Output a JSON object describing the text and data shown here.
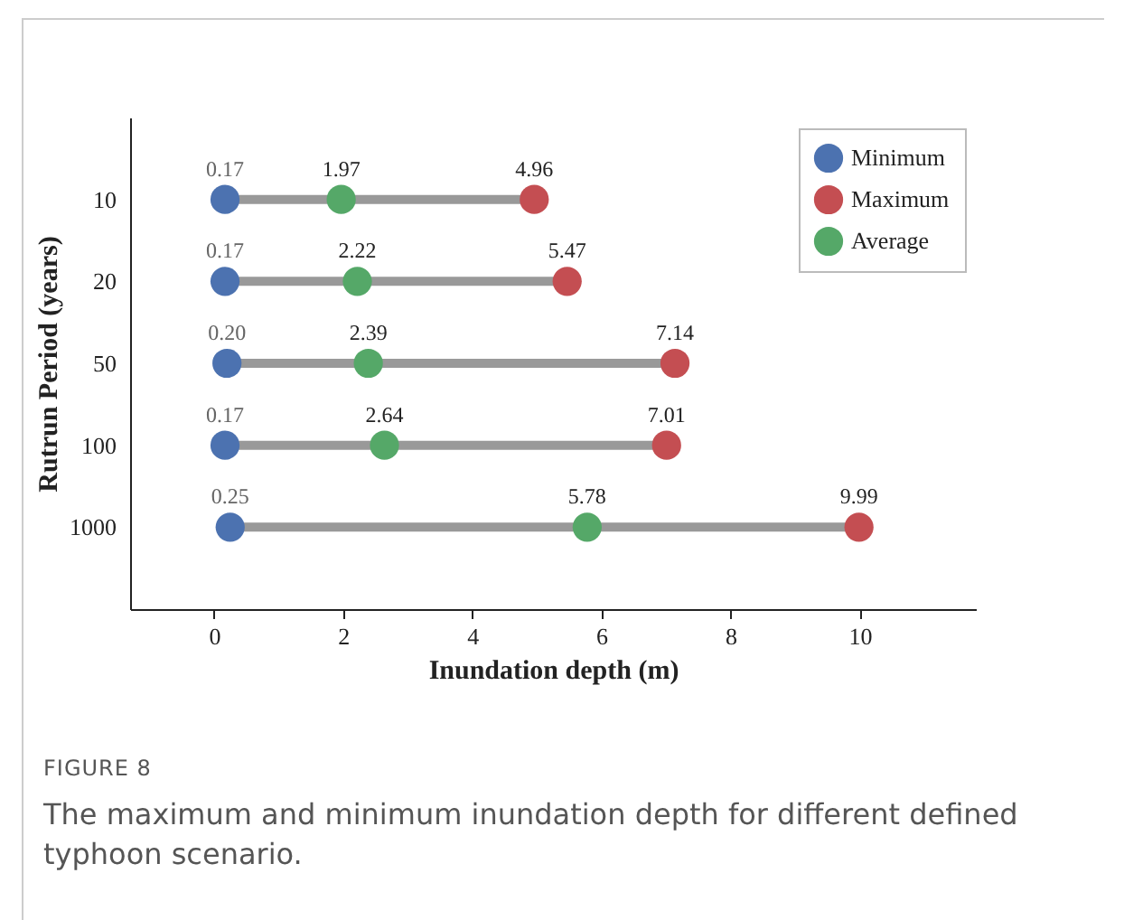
{
  "chart_data": {
    "type": "scatter",
    "orientation": "horizontal",
    "xlabel": "Inundation depth (m)",
    "ylabel": "Rutrun Period (years)",
    "categories": [
      "10",
      "20",
      "50",
      "100",
      "1000"
    ],
    "series": [
      {
        "name": "Minimum",
        "color": "#4c72b0",
        "values": [
          0.17,
          0.17,
          0.2,
          0.17,
          0.25
        ],
        "value_labels": [
          "0.17",
          "0.17",
          "0.20",
          "0.17",
          "0.25"
        ]
      },
      {
        "name": "Maximum",
        "color": "#c44e52",
        "values": [
          4.96,
          5.47,
          7.14,
          7.01,
          9.99
        ],
        "value_labels": [
          "4.96",
          "5.47",
          "7.14",
          "7.01",
          "9.99"
        ]
      },
      {
        "name": "Average",
        "color": "#55a868",
        "values": [
          1.97,
          2.22,
          2.39,
          2.64,
          5.78
        ],
        "value_labels": [
          "1.97",
          "2.22",
          "2.39",
          "2.64",
          "5.78"
        ]
      }
    ],
    "xlim": [
      -1.3,
      11.8
    ],
    "xticks": [
      0,
      2,
      4,
      6,
      8,
      10
    ],
    "legend": "top right",
    "marker": "circle",
    "annotations": [
      "FIGURE 8",
      "The maximum and minimum inundation depth for different defined typhoon scenario."
    ]
  }
}
